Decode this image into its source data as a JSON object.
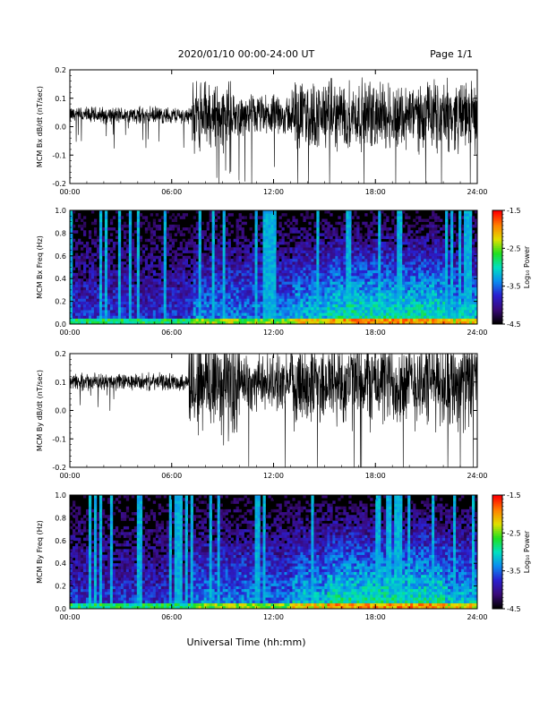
{
  "header": {
    "title": "2020/01/10  00:00-24:00 UT",
    "page": "Page 1/1"
  },
  "footer": {
    "xlabel": "Universal Time (hh:mm)"
  },
  "time_ticks": [
    "00:00",
    "06:00",
    "12:00",
    "18:00",
    "24:00"
  ],
  "colorbar": {
    "label": "Log₁₀ Power",
    "ticks": [
      "-1.5",
      "-2.5",
      "-3.5",
      "-4.5"
    ],
    "range": [
      -4.5,
      -1.5
    ],
    "colors": [
      "#000000",
      "#3a0a7a",
      "#2a1fd0",
      "#0a8cf0",
      "#00e0c0",
      "#20e020",
      "#e0e000",
      "#ff8000",
      "#ff0000"
    ]
  },
  "chart_data": [
    {
      "type": "line",
      "ylabel": "MCM Bx dB/dt (nT/sec)",
      "xlim": [
        0,
        24
      ],
      "ylim": [
        -0.2,
        0.2
      ],
      "y_ticks": [
        "-0.2",
        "-0.1",
        "0.0",
        "0.1",
        "0.2"
      ],
      "y_tick_values": [
        -0.2,
        -0.1,
        0.0,
        0.1,
        0.2
      ],
      "baseline": 0.04,
      "activity": [
        {
          "t0": 0,
          "t1": 7.2,
          "amp": 0.03
        },
        {
          "t0": 7.2,
          "t1": 9.5,
          "amp": 0.12
        },
        {
          "t0": 9.5,
          "t1": 13,
          "amp": 0.07
        },
        {
          "t0": 13,
          "t1": 24,
          "amp": 0.12
        }
      ]
    },
    {
      "type": "heatmap",
      "ylabel": "MCM Bx Freq (Hz)",
      "xlim": [
        0,
        24
      ],
      "ylim": [
        0,
        1.0
      ],
      "y_ticks": [
        "0.0",
        "0.2",
        "0.4",
        "0.6",
        "0.8",
        "1.0"
      ],
      "y_tick_values": [
        0.0,
        0.2,
        0.4,
        0.6,
        0.8,
        1.0
      ]
    },
    {
      "type": "line",
      "ylabel": "MCM By dB/dt (nT/sec)",
      "xlim": [
        0,
        24
      ],
      "ylim": [
        -0.2,
        0.2
      ],
      "y_ticks": [
        "-0.2",
        "-0.1",
        "0.0",
        "0.1",
        "0.2"
      ],
      "y_tick_values": [
        -0.2,
        -0.1,
        0.0,
        0.1,
        0.2
      ],
      "baseline": 0.1,
      "activity": [
        {
          "t0": 0,
          "t1": 7.0,
          "amp": 0.03
        },
        {
          "t0": 7.0,
          "t1": 10,
          "amp": 0.2
        },
        {
          "t0": 10,
          "t1": 13,
          "amp": 0.1
        },
        {
          "t0": 13,
          "t1": 24,
          "amp": 0.16
        }
      ]
    },
    {
      "type": "heatmap",
      "ylabel": "MCM By Freq (Hz)",
      "xlim": [
        0,
        24
      ],
      "ylim": [
        0,
        1.0
      ],
      "y_ticks": [
        "0.0",
        "0.2",
        "0.4",
        "0.6",
        "0.8",
        "1.0"
      ],
      "y_tick_values": [
        0.0,
        0.2,
        0.4,
        0.6,
        0.8,
        1.0
      ]
    }
  ]
}
